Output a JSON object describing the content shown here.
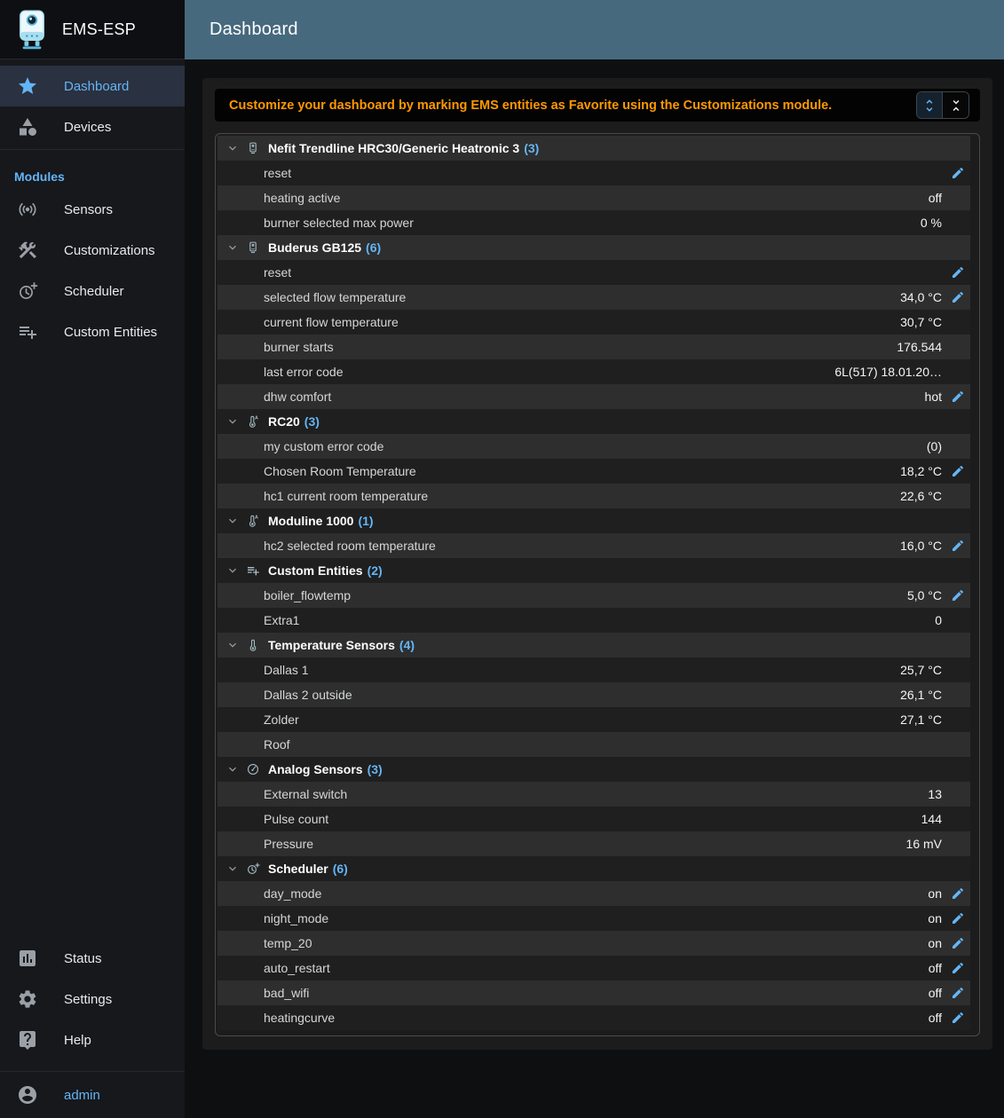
{
  "app": {
    "title": "EMS-ESP"
  },
  "topbar": {
    "title": "Dashboard"
  },
  "colors": {
    "accent_blue": "#64b5f6",
    "topbar": "#47697e",
    "notice_orange": "#ff9800",
    "row_light": "#2e2e2e",
    "row_dark": "#1f1f1f",
    "sidebar_bg": "#16181c"
  },
  "sidebar": {
    "nav": [
      {
        "label": "Dashboard",
        "icon": "star-icon",
        "active": true
      },
      {
        "label": "Devices",
        "icon": "devices-icon",
        "active": false
      }
    ],
    "modules_label": "Modules",
    "modules": [
      {
        "label": "Sensors",
        "icon": "sensors-icon"
      },
      {
        "label": "Customizations",
        "icon": "tools-icon"
      },
      {
        "label": "Scheduler",
        "icon": "clock-plus-icon"
      },
      {
        "label": "Custom Entities",
        "icon": "playlist-add-icon"
      }
    ],
    "bottom": [
      {
        "label": "Status",
        "icon": "status-chart-icon"
      },
      {
        "label": "Settings",
        "icon": "gear-icon"
      },
      {
        "label": "Help",
        "icon": "help-icon"
      }
    ],
    "user": {
      "label": "admin",
      "icon": "account-icon"
    }
  },
  "notice": {
    "text": "Customize your dashboard by marking EMS entities as Favorite using the Customizations module.",
    "buttons": [
      {
        "icon": "unfold-more-icon",
        "selected": true
      },
      {
        "icon": "unfold-less-icon",
        "selected": false
      }
    ]
  },
  "dashboard": {
    "groups": [
      {
        "name": "Nefit Trendline HRC30/Generic Heatronic 3",
        "count": 3,
        "icon": "boiler-icon",
        "rows": [
          {
            "label": "reset",
            "value": "",
            "editable": true
          },
          {
            "label": "heating active",
            "value": "off",
            "editable": false
          },
          {
            "label": "burner selected max power",
            "value": "0 %",
            "editable": false
          }
        ]
      },
      {
        "name": "Buderus GB125",
        "count": 6,
        "icon": "boiler-icon",
        "rows": [
          {
            "label": "reset",
            "value": "",
            "editable": true
          },
          {
            "label": "selected flow temperature",
            "value": "34,0 °C",
            "editable": true
          },
          {
            "label": "current flow temperature",
            "value": "30,7 °C",
            "editable": false
          },
          {
            "label": "burner starts",
            "value": "176.544",
            "editable": false
          },
          {
            "label": "last error code",
            "value": "6L(517) 18.01.20…",
            "editable": false
          },
          {
            "label": "dhw comfort",
            "value": "hot",
            "editable": true
          }
        ]
      },
      {
        "name": "RC20",
        "count": 3,
        "icon": "thermostat-auto-icon",
        "rows": [
          {
            "label": "my custom error code",
            "value": "(0)",
            "editable": false
          },
          {
            "label": "Chosen Room Temperature",
            "value": "18,2 °C",
            "editable": true
          },
          {
            "label": "hc1 current room temperature",
            "value": "22,6 °C",
            "editable": false
          }
        ]
      },
      {
        "name": "Moduline 1000",
        "count": 1,
        "icon": "thermostat-auto-icon",
        "rows": [
          {
            "label": "hc2 selected room temperature",
            "value": "16,0 °C",
            "editable": true
          }
        ]
      },
      {
        "name": "Custom Entities",
        "count": 2,
        "icon": "playlist-add-icon",
        "rows": [
          {
            "label": "boiler_flowtemp",
            "value": "5,0 °C",
            "editable": true
          },
          {
            "label": "Extra1",
            "value": "0",
            "editable": false
          }
        ]
      },
      {
        "name": "Temperature Sensors",
        "count": 4,
        "icon": "thermometer-icon",
        "rows": [
          {
            "label": "Dallas 1",
            "value": "25,7 °C",
            "editable": false
          },
          {
            "label": "Dallas 2 outside",
            "value": "26,1 °C",
            "editable": false
          },
          {
            "label": "Zolder",
            "value": "27,1 °C",
            "editable": false
          },
          {
            "label": "Roof",
            "value": "",
            "editable": false
          }
        ]
      },
      {
        "name": "Analog Sensors",
        "count": 3,
        "icon": "gauge-icon",
        "rows": [
          {
            "label": "External switch",
            "value": "13",
            "editable": false
          },
          {
            "label": "Pulse count",
            "value": "144",
            "editable": false
          },
          {
            "label": "Pressure",
            "value": "16 mV",
            "editable": false
          }
        ]
      },
      {
        "name": "Scheduler",
        "count": 6,
        "icon": "clock-plus-icon",
        "rows": [
          {
            "label": "day_mode",
            "value": "on",
            "editable": true
          },
          {
            "label": "night_mode",
            "value": "on",
            "editable": true
          },
          {
            "label": "temp_20",
            "value": "on",
            "editable": true
          },
          {
            "label": "auto_restart",
            "value": "off",
            "editable": true
          },
          {
            "label": "bad_wifi",
            "value": "off",
            "editable": true
          },
          {
            "label": "heatingcurve",
            "value": "off",
            "editable": true
          }
        ]
      }
    ]
  }
}
